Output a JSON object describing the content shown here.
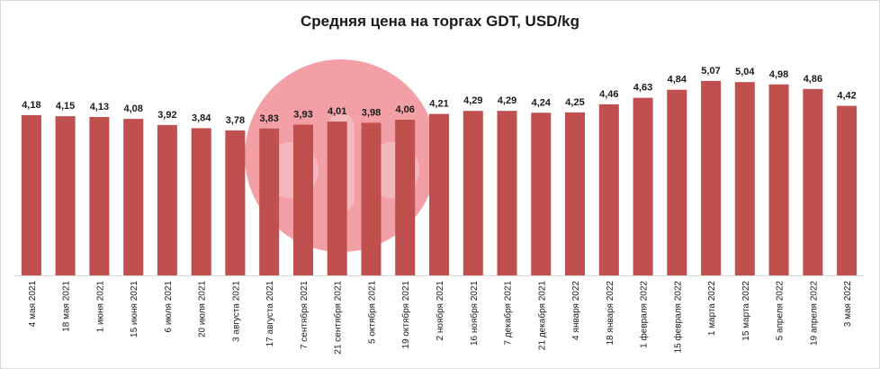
{
  "chart_data": {
    "type": "bar",
    "title": "Средняя цена на торгах GDT, USD/kg",
    "xlabel": "",
    "ylabel": "",
    "ylim": [
      0,
      5.35
    ],
    "grid": false,
    "legend": "none",
    "bar_color": "#c0504d",
    "watermark_color": "#f08f96",
    "categories": [
      "4 мая 2021",
      "18 мая 2021",
      "1 июня 2021",
      "15 июня 2021",
      "6 июля 2021",
      "20 июля 2021",
      "3 августа 2021",
      "17 августа 2021",
      "7 сентября 2021",
      "21 сентября 2021",
      "5 октября 2021",
      "19 октября 2021",
      "2 ноября 2021",
      "16 ноября 2021",
      "7 декабря 2021",
      "21 декабря 2021",
      "4 января 2022",
      "18 января 2022",
      "1 февраля 2022",
      "15 февраля 2022",
      "1 марта 2022",
      "15 марта 2022",
      "5 апреля 2022",
      "19 апреля 2022",
      "3 мая 2022"
    ],
    "values": [
      4.18,
      4.15,
      4.13,
      4.08,
      3.92,
      3.84,
      3.78,
      3.83,
      3.93,
      4.01,
      3.98,
      4.06,
      4.21,
      4.29,
      4.29,
      4.24,
      4.25,
      4.46,
      4.63,
      4.84,
      5.07,
      5.04,
      4.98,
      4.86,
      4.42
    ],
    "data_labels": [
      "4,18",
      "4,15",
      "4,13",
      "4,08",
      "3,92",
      "3,84",
      "3,78",
      "3,83",
      "3,93",
      "4,01",
      "3,98",
      "4,06",
      "4,21",
      "4,29",
      "4,29",
      "4,24",
      "4,25",
      "4,46",
      "4,63",
      "4,84",
      "5,07",
      "5,04",
      "4,98",
      "4,86",
      "4,42"
    ]
  }
}
